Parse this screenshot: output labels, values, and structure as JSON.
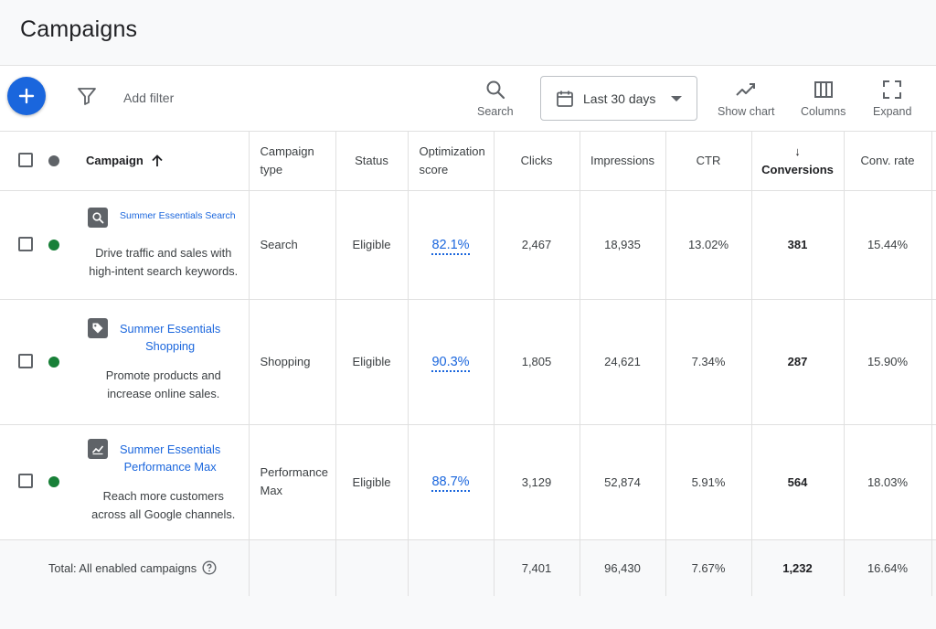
{
  "header": {
    "title": "Campaigns"
  },
  "toolbar": {
    "add_filter": "Add filter",
    "search": "Search",
    "date_range": "Last 30 days",
    "show_chart": "Show chart",
    "columns": "Columns",
    "expand": "Expand"
  },
  "table": {
    "headers": {
      "campaign": "Campaign",
      "campaign_type_line1": "Campaign",
      "campaign_type_line2": "type",
      "status": "Status",
      "optimization_line1": "Optimization",
      "optimization_line2": "score",
      "clicks": "Clicks",
      "impressions": "Impressions",
      "ctr": "CTR",
      "conversions": "↓ Conversions",
      "conv_rate": "Conv. rate"
    },
    "rows": [
      {
        "icon": "search-icon",
        "name_line1": "Summer Essentials Search",
        "name_line2": "",
        "description": "Drive traffic and sales with high-intent search keywords.",
        "type_line1": "Search",
        "type_line2": "",
        "status": "Eligible",
        "optimization_score": "82.1%",
        "clicks": "2,467",
        "impressions": "18,935",
        "ctr": "13.02%",
        "conversions": "381",
        "conv_rate": "15.44%"
      },
      {
        "icon": "tag-icon",
        "name_line1": "Summer Essentials",
        "name_line2": "Shopping",
        "description": "Promote products and increase online sales.",
        "type_line1": "Shopping",
        "type_line2": "",
        "status": "Eligible",
        "optimization_score": "90.3%",
        "clicks": "1,805",
        "impressions": "24,621",
        "ctr": "7.34%",
        "conversions": "287",
        "conv_rate": "15.90%"
      },
      {
        "icon": "chart-icon",
        "name_line1": "Summer Essentials",
        "name_line2": "Performance Max",
        "description": "Reach more customers across all Google channels.",
        "type_line1": "Performance",
        "type_line2": "Max",
        "status": "Eligible",
        "optimization_score": "88.7%",
        "clicks": "3,129",
        "impressions": "52,874",
        "ctr": "5.91%",
        "conversions": "564",
        "conv_rate": "18.03%"
      }
    ],
    "total": {
      "label": "Total: All enabled campaigns",
      "clicks": "7,401",
      "impressions": "96,430",
      "ctr": "7.67%",
      "conversions": "1,232",
      "conv_rate": "16.64%"
    }
  },
  "colors": {
    "accent": "#1a66dd",
    "enabled": "#188038",
    "header_bg": "#f8f9fa"
  }
}
